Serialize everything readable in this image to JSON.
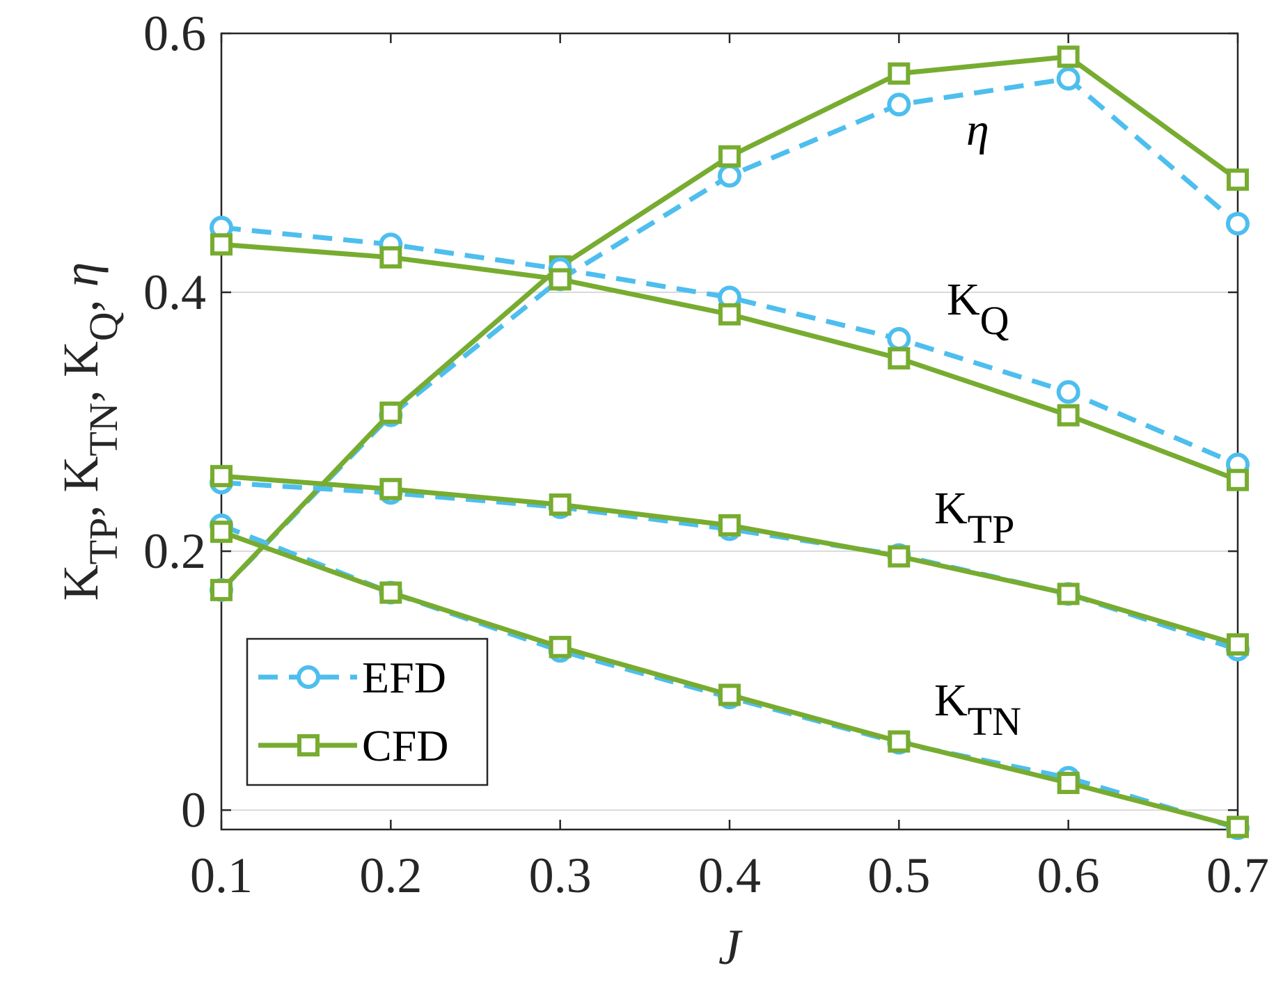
{
  "chart_data": {
    "type": "line",
    "x": [
      0.1,
      0.2,
      0.3,
      0.4,
      0.5,
      0.6,
      0.7
    ],
    "xlim": [
      0.1,
      0.7
    ],
    "ylim": [
      -0.015,
      0.6
    ],
    "xticks": [
      "0.1",
      "0.2",
      "0.3",
      "0.4",
      "0.5",
      "0.6",
      "0.7"
    ],
    "yticks": [
      "0",
      "0.2",
      "0.4",
      "0.6"
    ],
    "ytick_values": [
      0,
      0.2,
      0.4,
      0.6
    ],
    "xlabel": "J",
    "ylabel": {
      "parts": [
        "K",
        "TP",
        ", K",
        "TN",
        ", K",
        "Q",
        ", ",
        "η"
      ]
    },
    "grid": "horizontal",
    "legend": {
      "placement": "bottom-left",
      "entries": [
        {
          "label": "EFD",
          "style": "efd"
        },
        {
          "label": "CFD",
          "style": "cfd"
        }
      ]
    },
    "styles": {
      "efd": {
        "color": "#4DBEEE",
        "dash": "dashed",
        "marker": "circle"
      },
      "cfd": {
        "color": "#77AC30",
        "dash": "solid",
        "marker": "square"
      }
    },
    "groups": [
      {
        "key": "eta",
        "annotation": {
          "base": "η",
          "sub": ""
        },
        "efd": [
          0.17,
          0.305,
          0.41,
          0.49,
          0.545,
          0.565,
          0.453
        ],
        "cfd": [
          0.17,
          0.307,
          0.42,
          0.505,
          0.569,
          0.582,
          0.487
        ]
      },
      {
        "key": "KQ",
        "annotation": {
          "base": "K",
          "sub": "Q"
        },
        "efd": [
          0.45,
          0.437,
          0.418,
          0.396,
          0.364,
          0.323,
          0.267
        ],
        "cfd": [
          0.437,
          0.427,
          0.41,
          0.383,
          0.349,
          0.305,
          0.255
        ]
      },
      {
        "key": "KTP",
        "annotation": {
          "base": "K",
          "sub": "TP"
        },
        "efd": [
          0.253,
          0.245,
          0.234,
          0.217,
          0.197,
          0.167,
          0.124
        ],
        "cfd": [
          0.258,
          0.248,
          0.236,
          0.22,
          0.196,
          0.167,
          0.128
        ]
      },
      {
        "key": "KTN",
        "annotation": {
          "base": "K",
          "sub": "TN"
        },
        "efd": [
          0.22,
          0.168,
          0.123,
          0.087,
          0.052,
          0.025,
          -0.014
        ],
        "cfd": [
          0.215,
          0.168,
          0.126,
          0.089,
          0.053,
          0.021,
          -0.013
        ]
      }
    ]
  }
}
